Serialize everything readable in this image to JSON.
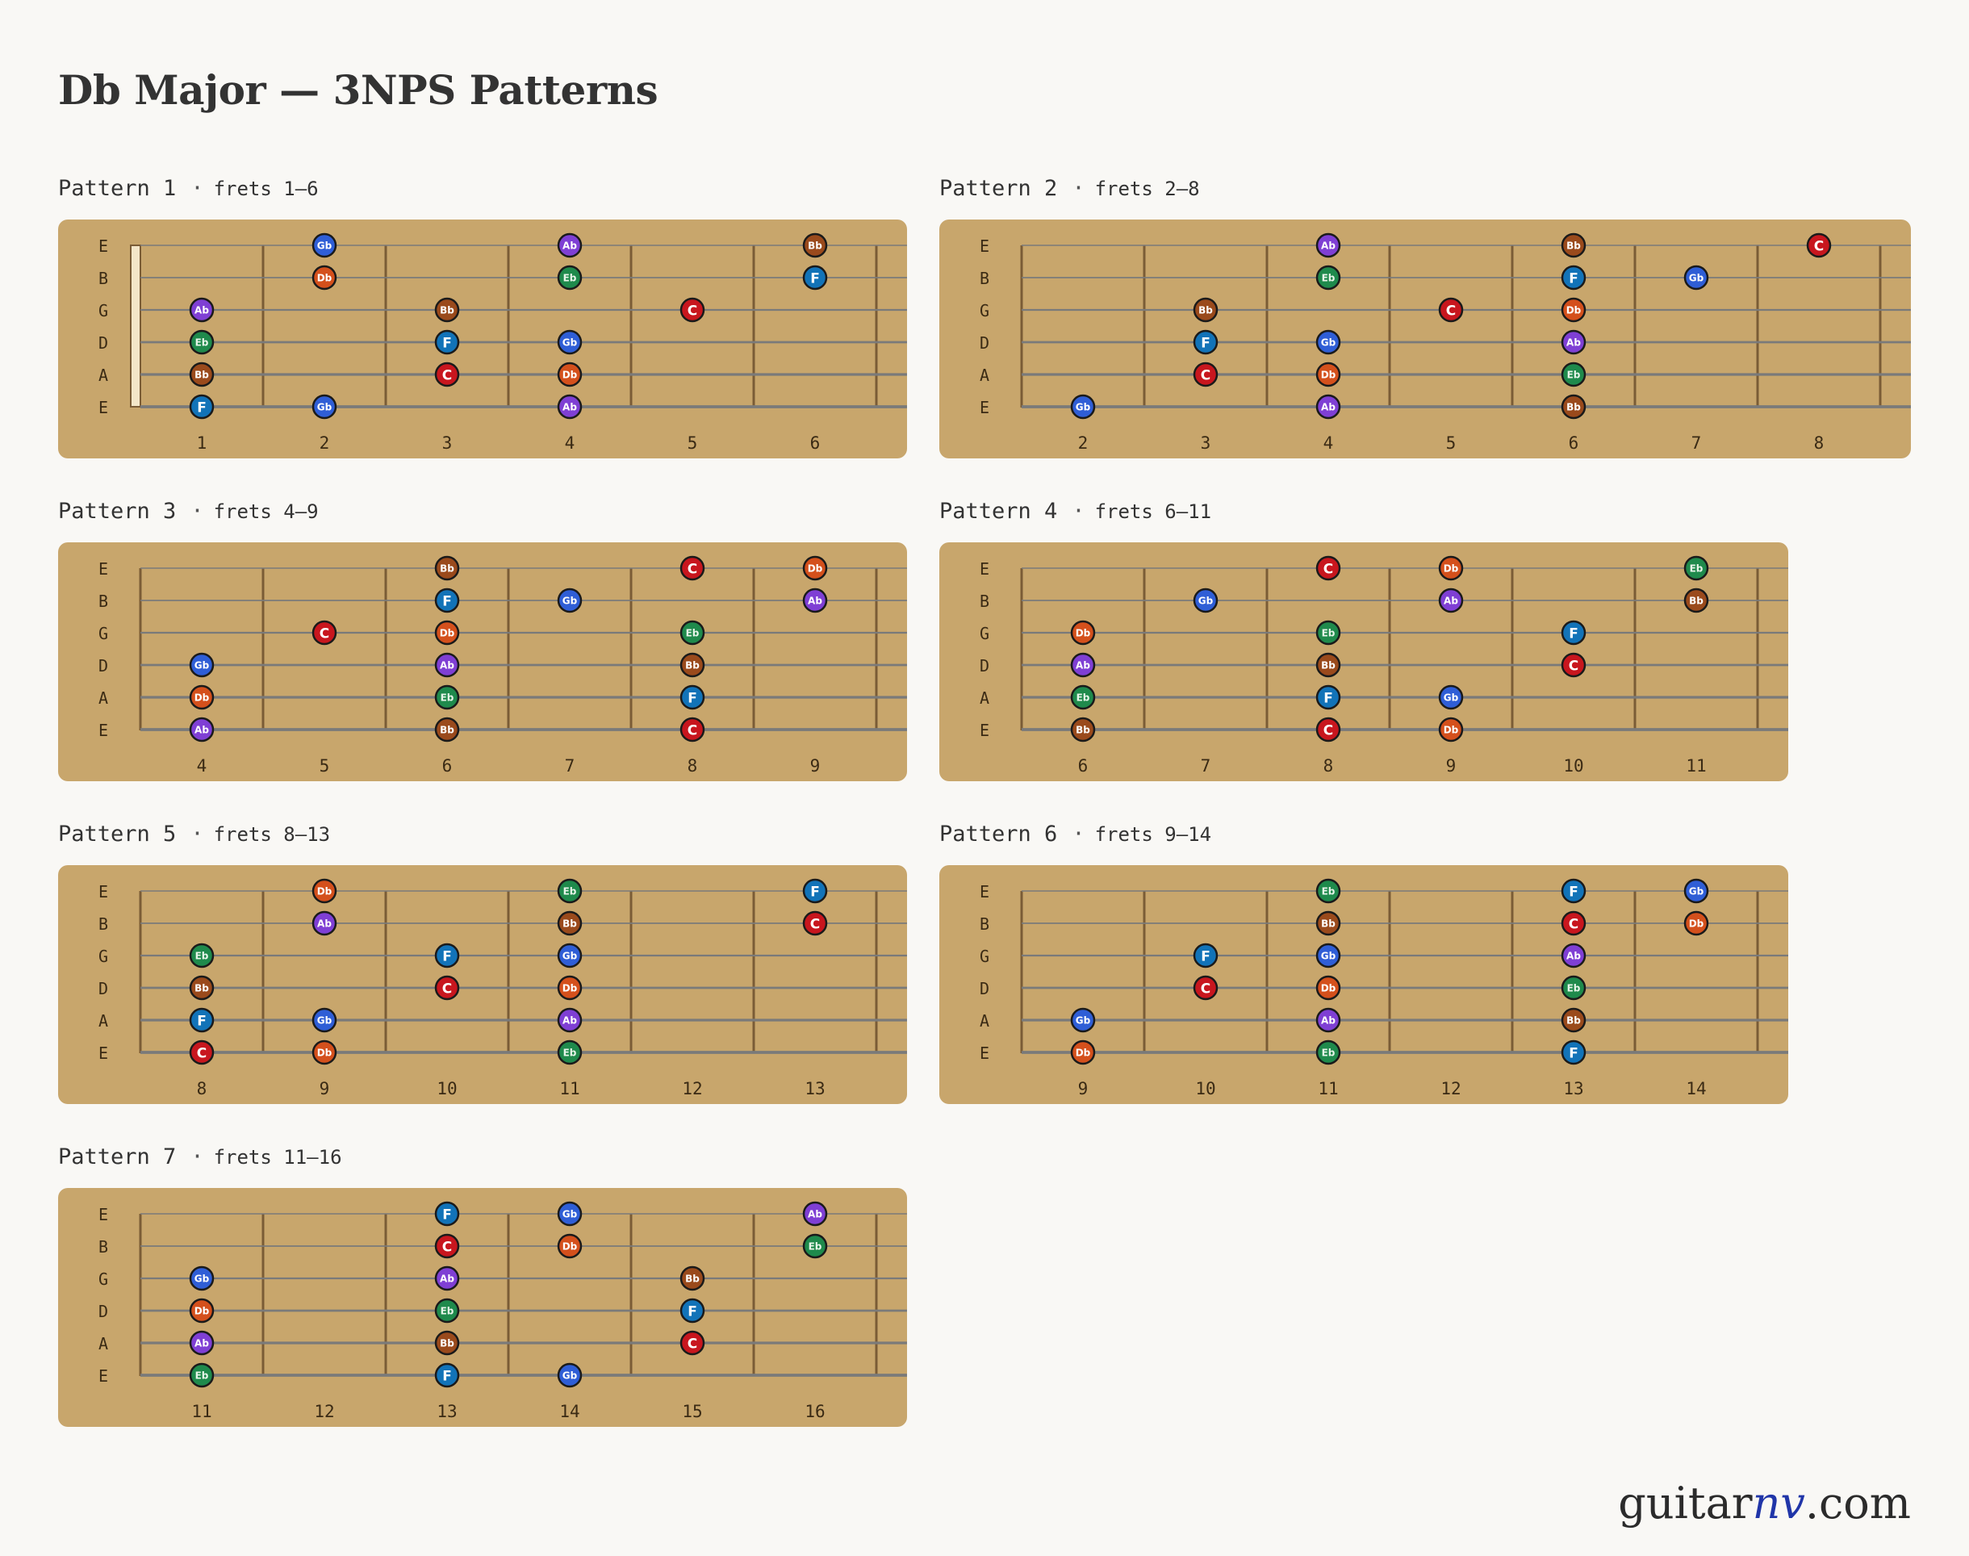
{
  "title": "Db Major — 3NPS Patterns",
  "logo": {
    "prefix": "guitar",
    "accent": "nv",
    "suffix": ".com"
  },
  "strings": [
    "E",
    "B",
    "G",
    "D",
    "A",
    "E"
  ],
  "note_colors": {
    "Db": "#d4501c",
    "Eb": "#1f8a4c",
    "F": "#1273b8",
    "Gb": "#2f5ed6",
    "Ab": "#7f3fd4",
    "Bb": "#9a4a1c",
    "C": "#c8161e"
  },
  "colors": {
    "board": "#c8a66c",
    "fret": "#7a5c36",
    "string": "#7a7a7a",
    "nut": "#f3e6c8"
  },
  "patterns": [
    {
      "label": "Pattern 1",
      "sep": "·",
      "range": "frets 1–6",
      "frets": [
        1,
        2,
        3,
        4,
        5,
        6
      ],
      "start": 1,
      "end": 6,
      "nut": true,
      "notes": [
        [
          [
            2,
            "Gb"
          ],
          [
            4,
            "Ab"
          ],
          [
            6,
            "Bb"
          ]
        ],
        [
          [
            2,
            "Db"
          ],
          [
            4,
            "Eb"
          ],
          [
            6,
            "F"
          ]
        ],
        [
          [
            1,
            "Ab"
          ],
          [
            3,
            "Bb"
          ],
          [
            5,
            "C"
          ]
        ],
        [
          [
            1,
            "Eb"
          ],
          [
            3,
            "F"
          ],
          [
            4,
            "Gb"
          ]
        ],
        [
          [
            1,
            "Bb"
          ],
          [
            3,
            "C"
          ],
          [
            4,
            "Db"
          ]
        ],
        [
          [
            1,
            "F"
          ],
          [
            2,
            "Gb"
          ],
          [
            4,
            "Ab"
          ]
        ]
      ]
    },
    {
      "label": "Pattern 2",
      "sep": "·",
      "range": "frets 2–8",
      "frets": [
        2,
        3,
        4,
        5,
        6,
        7,
        8
      ],
      "start": 2,
      "end": 8,
      "nut": false,
      "notes": [
        [
          [
            4,
            "Ab"
          ],
          [
            6,
            "Bb"
          ],
          [
            8,
            "C"
          ]
        ],
        [
          [
            4,
            "Eb"
          ],
          [
            6,
            "F"
          ],
          [
            7,
            "Gb"
          ]
        ],
        [
          [
            3,
            "Bb"
          ],
          [
            5,
            "C"
          ],
          [
            6,
            "Db"
          ]
        ],
        [
          [
            3,
            "F"
          ],
          [
            4,
            "Gb"
          ],
          [
            6,
            "Ab"
          ]
        ],
        [
          [
            3,
            "C"
          ],
          [
            4,
            "Db"
          ],
          [
            6,
            "Eb"
          ]
        ],
        [
          [
            2,
            "Gb"
          ],
          [
            4,
            "Ab"
          ],
          [
            6,
            "Bb"
          ]
        ]
      ]
    },
    {
      "label": "Pattern 3",
      "sep": "·",
      "range": "frets 4–9",
      "frets": [
        4,
        5,
        6,
        7,
        8,
        9
      ],
      "start": 4,
      "end": 9,
      "nut": false,
      "notes": [
        [
          [
            6,
            "Bb"
          ],
          [
            8,
            "C"
          ],
          [
            9,
            "Db"
          ]
        ],
        [
          [
            6,
            "F"
          ],
          [
            7,
            "Gb"
          ],
          [
            9,
            "Ab"
          ]
        ],
        [
          [
            5,
            "C"
          ],
          [
            6,
            "Db"
          ],
          [
            8,
            "Eb"
          ]
        ],
        [
          [
            4,
            "Gb"
          ],
          [
            6,
            "Ab"
          ],
          [
            8,
            "Bb"
          ]
        ],
        [
          [
            4,
            "Db"
          ],
          [
            6,
            "Eb"
          ],
          [
            8,
            "F"
          ]
        ],
        [
          [
            4,
            "Ab"
          ],
          [
            6,
            "Bb"
          ],
          [
            8,
            "C"
          ]
        ]
      ]
    },
    {
      "label": "Pattern 4",
      "sep": "·",
      "range": "frets 6–11",
      "frets": [
        6,
        7,
        8,
        9,
        10,
        11
      ],
      "start": 6,
      "end": 11,
      "nut": false,
      "notes": [
        [
          [
            8,
            "C"
          ],
          [
            9,
            "Db"
          ],
          [
            11,
            "Eb"
          ]
        ],
        [
          [
            7,
            "Gb"
          ],
          [
            9,
            "Ab"
          ],
          [
            11,
            "Bb"
          ]
        ],
        [
          [
            6,
            "Db"
          ],
          [
            8,
            "Eb"
          ],
          [
            10,
            "F"
          ]
        ],
        [
          [
            6,
            "Ab"
          ],
          [
            8,
            "Bb"
          ],
          [
            10,
            "C"
          ]
        ],
        [
          [
            6,
            "Eb"
          ],
          [
            8,
            "F"
          ],
          [
            9,
            "Gb"
          ]
        ],
        [
          [
            6,
            "Bb"
          ],
          [
            8,
            "C"
          ],
          [
            9,
            "Db"
          ]
        ]
      ]
    },
    {
      "label": "Pattern 5",
      "sep": "·",
      "range": "frets 8–13",
      "frets": [
        8,
        9,
        10,
        11,
        12,
        13
      ],
      "start": 8,
      "end": 13,
      "nut": false,
      "notes": [
        [
          [
            9,
            "Db"
          ],
          [
            11,
            "Eb"
          ],
          [
            13,
            "F"
          ]
        ],
        [
          [
            9,
            "Ab"
          ],
          [
            11,
            "Bb"
          ],
          [
            13,
            "C"
          ]
        ],
        [
          [
            8,
            "Eb"
          ],
          [
            10,
            "F"
          ],
          [
            11,
            "Gb"
          ]
        ],
        [
          [
            8,
            "Bb"
          ],
          [
            10,
            "C"
          ],
          [
            11,
            "Db"
          ]
        ],
        [
          [
            8,
            "F"
          ],
          [
            9,
            "Gb"
          ],
          [
            11,
            "Ab"
          ]
        ],
        [
          [
            8,
            "C"
          ],
          [
            9,
            "Db"
          ],
          [
            11,
            "Eb"
          ]
        ]
      ]
    },
    {
      "label": "Pattern 6",
      "sep": "·",
      "range": "frets 9–14",
      "frets": [
        9,
        10,
        11,
        12,
        13,
        14
      ],
      "start": 9,
      "end": 14,
      "nut": false,
      "notes": [
        [
          [
            11,
            "Eb"
          ],
          [
            13,
            "F"
          ],
          [
            14,
            "Gb"
          ]
        ],
        [
          [
            11,
            "Bb"
          ],
          [
            13,
            "C"
          ],
          [
            14,
            "Db"
          ]
        ],
        [
          [
            10,
            "F"
          ],
          [
            11,
            "Gb"
          ],
          [
            13,
            "Ab"
          ]
        ],
        [
          [
            10,
            "C"
          ],
          [
            11,
            "Db"
          ],
          [
            13,
            "Eb"
          ]
        ],
        [
          [
            9,
            "Gb"
          ],
          [
            11,
            "Ab"
          ],
          [
            13,
            "Bb"
          ]
        ],
        [
          [
            9,
            "Db"
          ],
          [
            11,
            "Eb"
          ],
          [
            13,
            "F"
          ]
        ]
      ]
    },
    {
      "label": "Pattern 7",
      "sep": "·",
      "range": "frets 11–16",
      "frets": [
        11,
        12,
        13,
        14,
        15,
        16
      ],
      "start": 11,
      "end": 16,
      "nut": false,
      "notes": [
        [
          [
            13,
            "F"
          ],
          [
            14,
            "Gb"
          ],
          [
            16,
            "Ab"
          ]
        ],
        [
          [
            13,
            "C"
          ],
          [
            14,
            "Db"
          ],
          [
            16,
            "Eb"
          ]
        ],
        [
          [
            11,
            "Gb"
          ],
          [
            13,
            "Ab"
          ],
          [
            15,
            "Bb"
          ]
        ],
        [
          [
            11,
            "Db"
          ],
          [
            13,
            "Eb"
          ],
          [
            15,
            "F"
          ]
        ],
        [
          [
            11,
            "Ab"
          ],
          [
            13,
            "Bb"
          ],
          [
            15,
            "C"
          ]
        ],
        [
          [
            11,
            "Eb"
          ],
          [
            13,
            "F"
          ],
          [
            14,
            "Gb"
          ]
        ]
      ]
    }
  ]
}
